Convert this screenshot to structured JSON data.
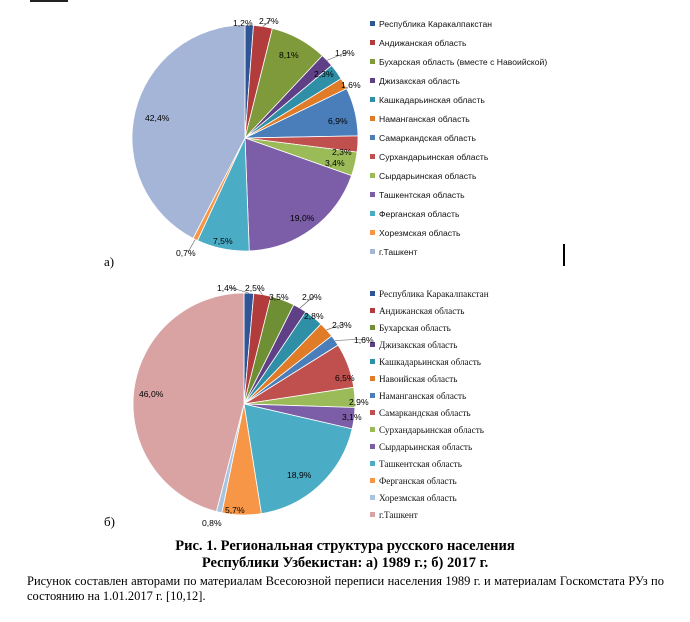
{
  "chart_data": [
    {
      "type": "pie",
      "panel_label": "а)",
      "categories": [
        "Республика Каракалпакстан",
        "Андижанская область",
        "Бухарская область (вместе с Навоийской)",
        "Джизакская область",
        "Кашкадарьинская область",
        "Наманганская область",
        "Самаркандская область",
        "Сурхандарьинская область",
        "Сырдарьинская область",
        "Ташкентская область",
        "Ферганская область",
        "Хорезмская область",
        "г.Ташкент"
      ],
      "values": [
        1.2,
        2.7,
        8.1,
        1.9,
        2.3,
        1.6,
        6.9,
        2.3,
        3.4,
        19.0,
        7.5,
        0.7,
        42.4
      ],
      "value_labels": [
        "1,2%",
        "2,7%",
        "8,1%",
        "1,9%",
        "2,3%",
        "1,6%",
        "6,9%",
        "2,3%",
        "3,4%",
        "19,0%",
        "7,5%",
        "0,7%",
        "42,4%"
      ],
      "colors": [
        "#2f5597",
        "#b23b3b",
        "#7f9a3a",
        "#5f3f86",
        "#2f8fa6",
        "#e07b28",
        "#4a7ebb",
        "#c0504d",
        "#9bbb59",
        "#7b5ea7",
        "#4bacc6",
        "#f79646",
        "#a5b5d8"
      ]
    },
    {
      "type": "pie",
      "panel_label": "б)",
      "categories": [
        "Республика Каракалпакстан",
        "Андижанская область",
        "Бухарская область",
        "Джизакская область",
        "Кашкадарьинская область",
        "Навоийская область",
        "Наманганская область",
        "Самаркандская область",
        "Сурхандарьинская область",
        "Сырдарьинская область",
        "Ташкентская область",
        "Ферганская область",
        "Хорезмская область",
        "г.Ташкент"
      ],
      "values": [
        1.4,
        2.5,
        3.5,
        2.0,
        2.8,
        2.3,
        1.6,
        6.5,
        2.9,
        3.1,
        18.9,
        5.7,
        0.8,
        46.0
      ],
      "value_labels": [
        "1,4%",
        "2,5%",
        "3,5%",
        "2,0%",
        "2,8%",
        "2,3%",
        "1,6%",
        "6,5%",
        "2,9%",
        "3,1%",
        "18,9%",
        "5,7%",
        "0,8%",
        "46,0%"
      ],
      "colors": [
        "#2f5597",
        "#b23b3b",
        "#6f8f35",
        "#5f3f86",
        "#2f8fa6",
        "#e07b28",
        "#4a7ebb",
        "#c0504d",
        "#9bbb59",
        "#7b5ea7",
        "#4bacc6",
        "#f79646",
        "#a8c4e0",
        "#d9a3a3"
      ]
    }
  ],
  "caption": {
    "line1": "Рис. 1. Региональная структура русского населения",
    "line2": "Республики Узбекистан: а) 1989 г.; б) 2017 г."
  },
  "source_note": "Рисунок составлен авторами по материалам Всесоюзной переписи населения 1989 г. и материалам Госкомстата РУз по состоянию на 1.01.2017 г. [10,12]."
}
